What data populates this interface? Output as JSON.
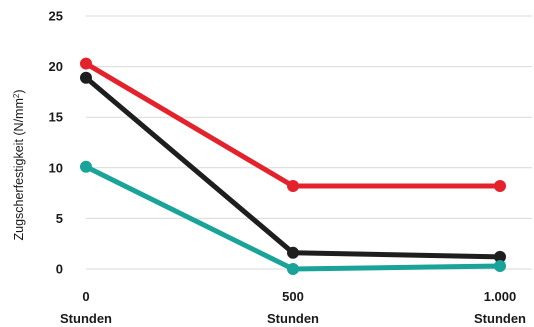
{
  "chart_data": {
    "type": "line",
    "categories": [
      "0 Stunden",
      "500 Stunden",
      "1.000 Stunden"
    ],
    "x_tick_labels": [
      {
        "value": "0",
        "unit": "Stunden"
      },
      {
        "value": "500",
        "unit": "Stunden"
      },
      {
        "value": "1.000",
        "unit": "Stunden"
      }
    ],
    "ylabel": "Zugscherfestigkeit (N/mm²)",
    "ylabel_main": "Zugscherfestigkeit (N/mm",
    "ylabel_sup": "2",
    "ylabel_end": ")",
    "ylim": [
      0,
      25
    ],
    "y_ticks": [
      0,
      5,
      10,
      15,
      20,
      25
    ],
    "grid": true,
    "series": [
      {
        "color": "#e3222b",
        "values": [
          20.3,
          8.2,
          8.2
        ]
      },
      {
        "color": "#1e1e1e",
        "values": [
          18.9,
          1.6,
          1.2
        ]
      },
      {
        "color": "#1aa399",
        "values": [
          10.1,
          0.0,
          0.3
        ]
      }
    ]
  }
}
